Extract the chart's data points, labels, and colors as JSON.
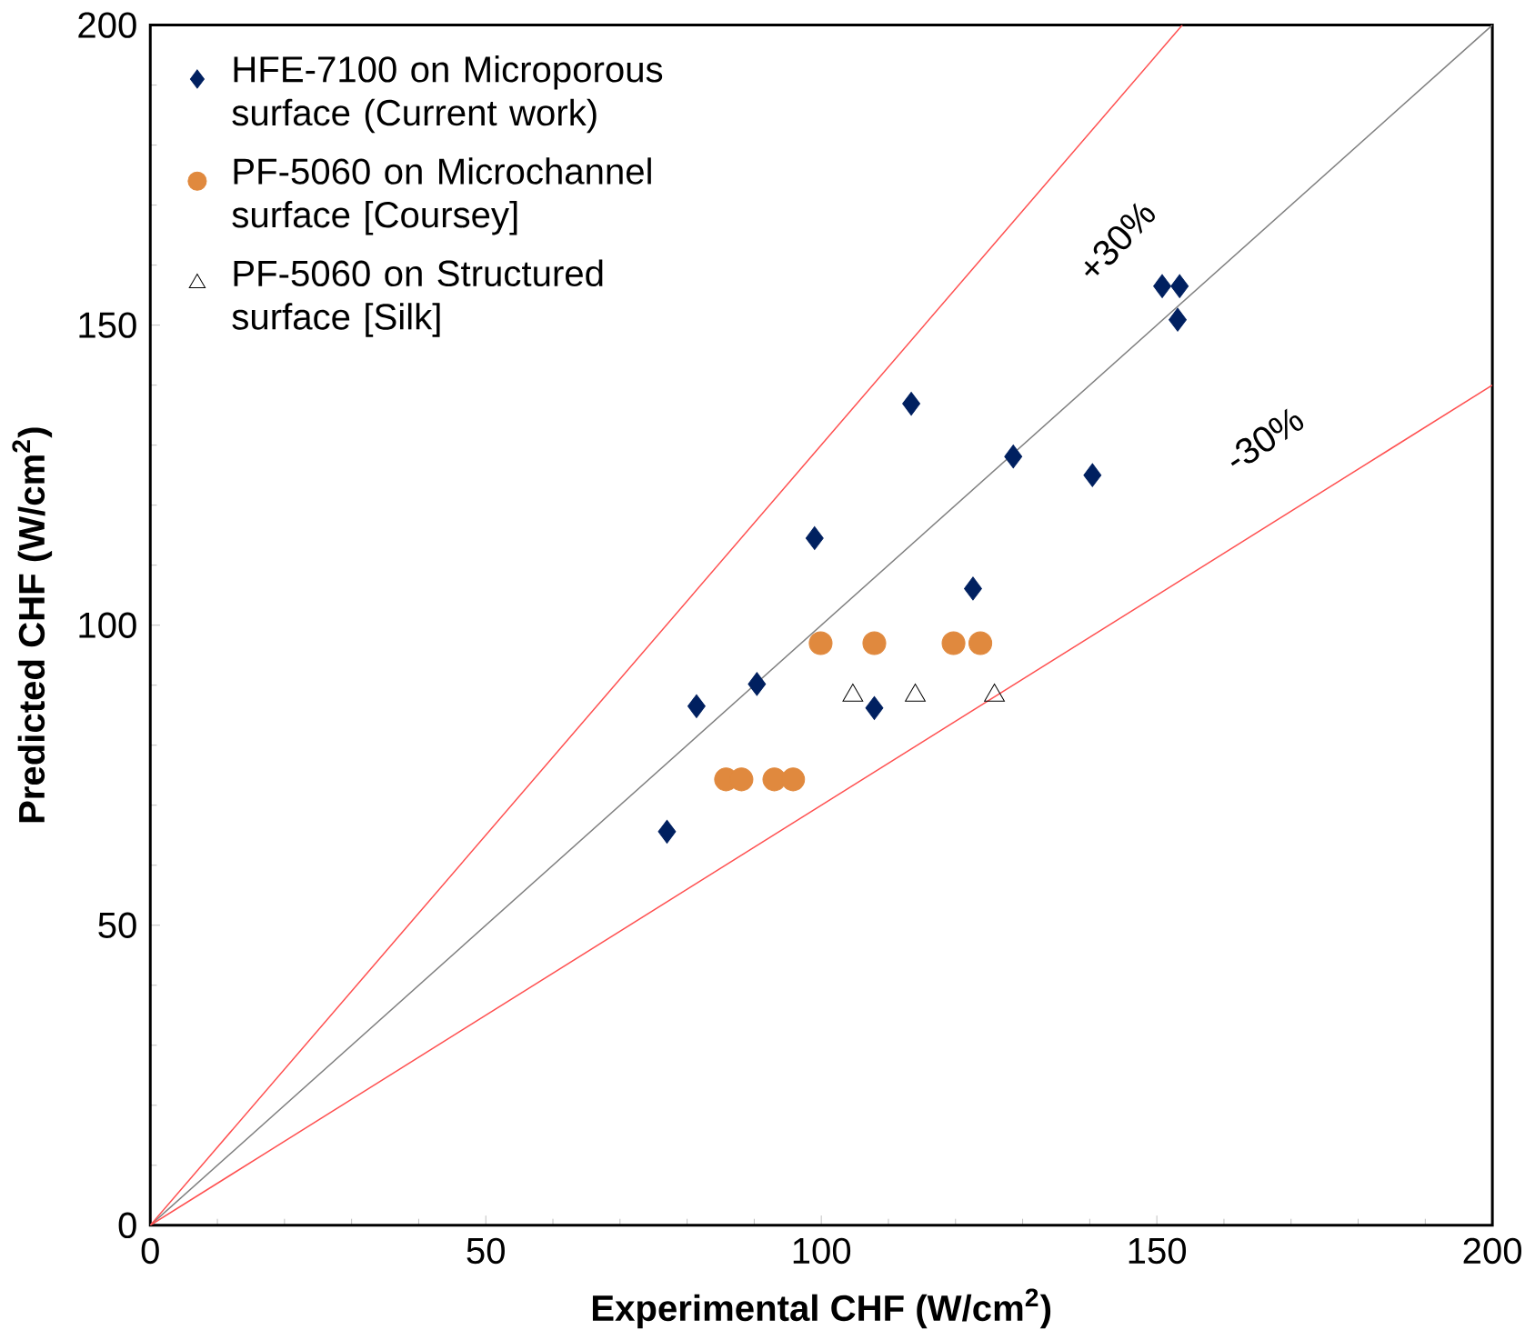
{
  "chart_data": {
    "type": "scatter",
    "xlabel": "Experimental CHF (W/cm$^{2}$)",
    "ylabel": "Predicted CHF (W/cm$^{2}$)",
    "xlim": [
      0,
      200
    ],
    "ylim": [
      0,
      200
    ],
    "xticks": [
      0,
      50,
      100,
      150,
      200
    ],
    "yticks": [
      0,
      50,
      100,
      150,
      200
    ],
    "grid": false,
    "legend": "top left",
    "series": [
      {
        "name": "HFE-7100 on Microporous surface (Current work)",
        "color": "#002060",
        "marker": "diamond",
        "x": [
          77,
          81.4,
          90.4,
          99,
          107.9,
          113.4,
          122.6,
          128.6,
          140.4,
          150.8,
          153.4,
          153.1
        ],
        "values": [
          65.6,
          86.5,
          90.2,
          114.5,
          86.2,
          136.9,
          106.1,
          128.1,
          125,
          156.5,
          156.5,
          150.9
        ]
      },
      {
        "name": "PF-5060 on Microchannel surface [Coursey]",
        "color": "#e0893e",
        "marker": "circle",
        "x": [
          85.8,
          88.1,
          93,
          95.8,
          99.9,
          107.9,
          119.7,
          123.7
        ],
        "values": [
          74.3,
          74.3,
          74.3,
          74.3,
          97,
          97,
          97,
          97
        ]
      },
      {
        "name": "PF-5060 on Structured surface [Silk]",
        "color": "#000000",
        "marker": "triangle",
        "x": [
          104.7,
          114,
          125.8
        ],
        "values": [
          88.3,
          88.3,
          88.3
        ]
      },
      {
        "type": "line",
        "color": "#808080",
        "marker": "none",
        "x": [
          0,
          200
        ],
        "values": [
          0,
          200
        ]
      },
      {
        "type": "line",
        "color": "#ff5050",
        "marker": "none",
        "x": [
          0,
          153.8
        ],
        "values": [
          0,
          200
        ]
      },
      {
        "type": "line",
        "color": "#ff5050",
        "marker": "none",
        "x": [
          0,
          200
        ],
        "values": [
          0,
          140
        ]
      }
    ],
    "annotations": [
      "+30%",
      "-30%"
    ]
  }
}
